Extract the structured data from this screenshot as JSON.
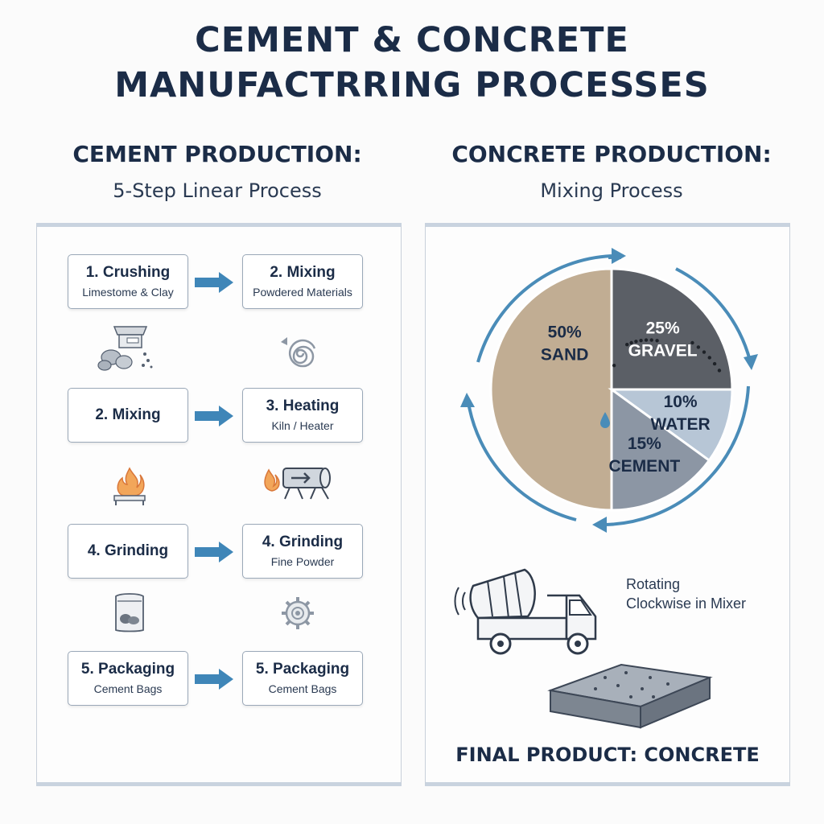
{
  "title": {
    "line1": "CEMENT & CONCRETE",
    "line2": "MANUFACTRRING PROCESSES"
  },
  "cement": {
    "heading": "CEMENT PRODUCTION:",
    "subheading": "5-Step Linear Process",
    "steps": [
      {
        "title": "1. Crushing",
        "desc": "Limestome & Clay"
      },
      {
        "title": "2. Mixing",
        "desc": "Powdered Materials"
      },
      {
        "title": "2. Mixing",
        "desc": ""
      },
      {
        "title": "3. Heating",
        "desc": "Kiln / Heater"
      },
      {
        "title": "4. Grinding",
        "desc": ""
      },
      {
        "title": "4. Grinding",
        "desc": "Fine Powder"
      },
      {
        "title": "5. Packaging",
        "desc": "Cement Bags"
      },
      {
        "title": "5. Packaging",
        "desc": "Cement Bags"
      }
    ],
    "icons": [
      "crusher-icon",
      "spiral-icon",
      "furnace-icon",
      "kiln-icon",
      "cement-bag-icon",
      "grinder-gear-icon"
    ]
  },
  "concrete": {
    "heading": "CONCRETE PRODUCTION:",
    "subheading": "Mixing Process",
    "mixer_note_line1": "Rotating",
    "mixer_note_line2": "Clockwise in Mixer",
    "final_product": "FINAL PRODUCT: CONCRETE"
  },
  "chart_data": {
    "type": "pie",
    "slices": [
      {
        "label": "SAND",
        "value": 50,
        "display": "50%",
        "color": "#c1ad93"
      },
      {
        "label": "GRAVEL",
        "value": 25,
        "display": "25%",
        "color": "#5b5f66"
      },
      {
        "label": "WATER",
        "value": 10,
        "display": "10%",
        "color": "#b7c6d6"
      },
      {
        "label": "CEMENT",
        "value": 15,
        "display": "15%",
        "color": "#8c96a4"
      }
    ],
    "accent_color": "#4a8cb8"
  }
}
